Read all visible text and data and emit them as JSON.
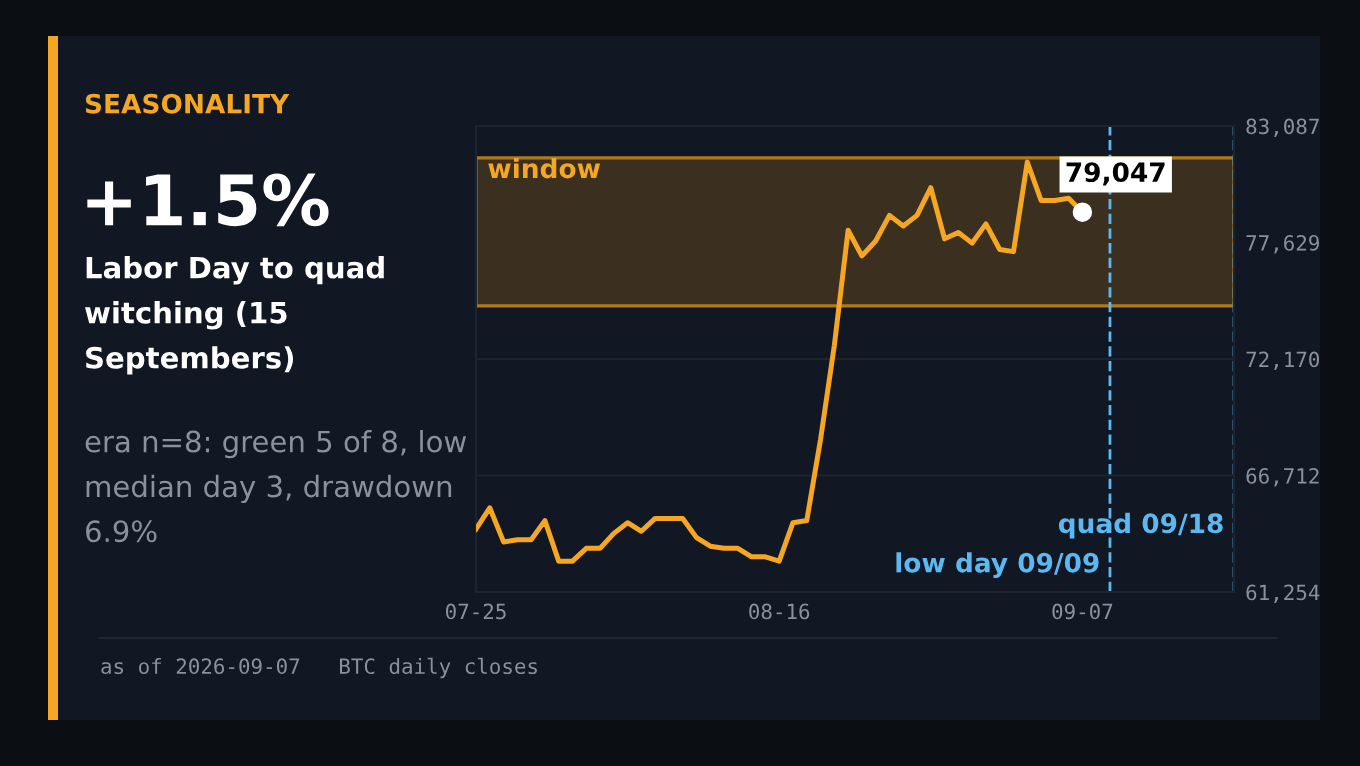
{
  "chart_data": {
    "type": "line",
    "title": "SEASONALITY",
    "subtitle": "Labor Day to quad witching (15 Septembers)",
    "annotations": [
      "+1.5%",
      "era n=8: green 5 of 8, low median day 3, drawdown 6.9%",
      "as of 2026-09-07   BTC daily closes",
      {
        "text": "79,047",
        "x": "2026-09-07",
        "y": 79047
      }
    ],
    "x": [
      "2026-07-25",
      "2026-07-26",
      "2026-07-27",
      "2026-07-28",
      "2026-07-29",
      "2026-07-30",
      "2026-07-31",
      "2026-08-01",
      "2026-08-02",
      "2026-08-03",
      "2026-08-04",
      "2026-08-05",
      "2026-08-06",
      "2026-08-07",
      "2026-08-08",
      "2026-08-09",
      "2026-08-10",
      "2026-08-11",
      "2026-08-12",
      "2026-08-13",
      "2026-08-14",
      "2026-08-15",
      "2026-08-16",
      "2026-08-17",
      "2026-08-18",
      "2026-08-19",
      "2026-08-20",
      "2026-08-21",
      "2026-08-22",
      "2026-08-23",
      "2026-08-24",
      "2026-08-25",
      "2026-08-26",
      "2026-08-27",
      "2026-08-28",
      "2026-08-29",
      "2026-08-30",
      "2026-08-31",
      "2026-09-01",
      "2026-09-02",
      "2026-09-03",
      "2026-09-04",
      "2026-09-05",
      "2026-09-06",
      "2026-09-07"
    ],
    "series": [
      {
        "color": "#f5a623",
        "values": [
          64200,
          65200,
          63600,
          63700,
          63700,
          64600,
          62700,
          62700,
          63300,
          63300,
          64000,
          64500,
          64100,
          64700,
          64700,
          64700,
          63800,
          63400,
          63300,
          63300,
          62900,
          62900,
          62700,
          64500,
          64600,
          68400,
          72800,
          78200,
          77000,
          77700,
          78900,
          78400,
          78900,
          80200,
          77800,
          78100,
          77600,
          78500,
          77300,
          77200,
          81400,
          79600,
          79600,
          79700,
          79047
        ]
      }
    ],
    "xlim": [
      "2026-07-25",
      "2026-09-18"
    ],
    "xticks": [
      {
        "value": "2026-07-25",
        "label": "07-25"
      },
      {
        "value": "2026-08-16",
        "label": "08-16"
      },
      {
        "value": "2026-09-07",
        "label": "09-07"
      }
    ],
    "ylim": [
      61254,
      83087
    ],
    "yticks": [
      {
        "value": 61254,
        "label": "61,254"
      },
      {
        "value": 66712,
        "label": "66,712"
      },
      {
        "value": 72170,
        "label": "72,170"
      },
      {
        "value": 77629,
        "label": "77,629"
      },
      {
        "value": 83087,
        "label": "83,087"
      }
    ],
    "bands": [
      {
        "axis": "y",
        "from": 74660,
        "to": 81590,
        "label": "window",
        "color": "#3b3020"
      }
    ],
    "ref_lines": [
      {
        "axis": "x",
        "value": "2026-09-09",
        "label": "low day 09/09",
        "color": "#5bb8f0",
        "line_style": "dashed"
      },
      {
        "axis": "x",
        "value": "2026-09-18",
        "label": "quad 09/18",
        "color": "#5bb8f0",
        "line_style": "dashed"
      }
    ],
    "grid": "y",
    "marker": "none",
    "line_style": "solid",
    "legend": false
  }
}
